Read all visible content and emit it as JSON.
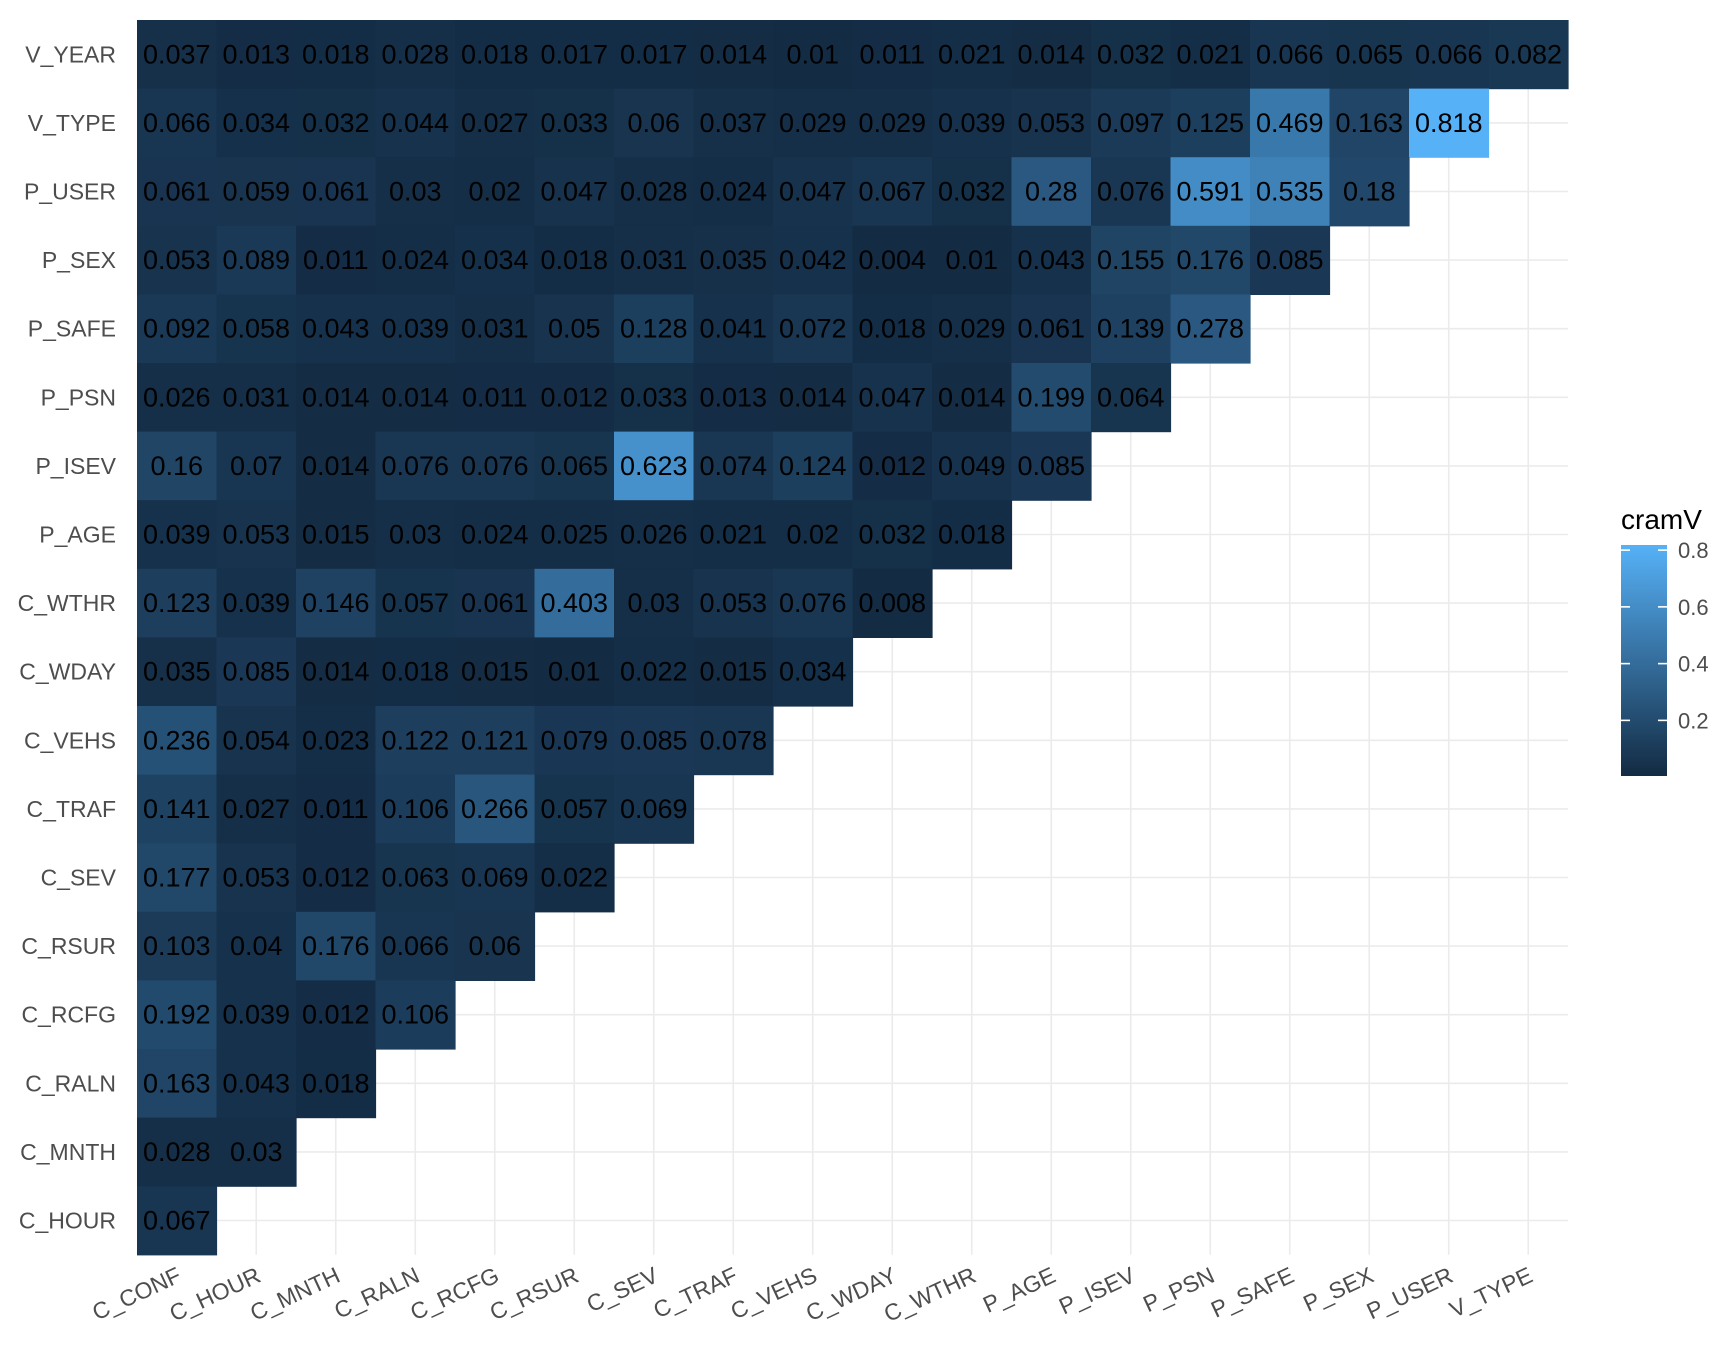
{
  "chart_data": {
    "type": "heatmap",
    "x_categories": [
      "C_CONF",
      "C_HOUR",
      "C_MNTH",
      "C_RALN",
      "C_RCFG",
      "C_RSUR",
      "C_SEV",
      "C_TRAF",
      "C_VEHS",
      "C_WDAY",
      "C_WTHR",
      "P_AGE",
      "P_ISEV",
      "P_PSN",
      "P_SAFE",
      "P_SEX",
      "P_USER",
      "V_TYPE"
    ],
    "y_categories": [
      "V_YEAR",
      "V_TYPE",
      "P_USER",
      "P_SEX",
      "P_SAFE",
      "P_PSN",
      "P_ISEV",
      "P_AGE",
      "C_WTHR",
      "C_WDAY",
      "C_VEHS",
      "C_TRAF",
      "C_SEV",
      "C_RSUR",
      "C_RCFG",
      "C_RALN",
      "C_MNTH",
      "C_HOUR"
    ],
    "rows": [
      {
        "y": "V_YEAR",
        "values": [
          "0.037",
          "0.013",
          "0.018",
          "0.028",
          "0.018",
          "0.017",
          "0.017",
          "0.014",
          "0.01",
          "0.011",
          "0.021",
          "0.014",
          "0.032",
          "0.021",
          "0.066",
          "0.065",
          "0.066",
          "0.082"
        ]
      },
      {
        "y": "V_TYPE",
        "values": [
          "0.066",
          "0.034",
          "0.032",
          "0.044",
          "0.027",
          "0.033",
          "0.06",
          "0.037",
          "0.029",
          "0.029",
          "0.039",
          "0.053",
          "0.097",
          "0.125",
          "0.469",
          "0.163",
          "0.818"
        ]
      },
      {
        "y": "P_USER",
        "values": [
          "0.061",
          "0.059",
          "0.061",
          "0.03",
          "0.02",
          "0.047",
          "0.028",
          "0.024",
          "0.047",
          "0.067",
          "0.032",
          "0.28",
          "0.076",
          "0.591",
          "0.535",
          "0.18"
        ]
      },
      {
        "y": "P_SEX",
        "values": [
          "0.053",
          "0.089",
          "0.011",
          "0.024",
          "0.034",
          "0.018",
          "0.031",
          "0.035",
          "0.042",
          "0.004",
          "0.01",
          "0.043",
          "0.155",
          "0.176",
          "0.085"
        ]
      },
      {
        "y": "P_SAFE",
        "values": [
          "0.092",
          "0.058",
          "0.043",
          "0.039",
          "0.031",
          "0.05",
          "0.128",
          "0.041",
          "0.072",
          "0.018",
          "0.029",
          "0.061",
          "0.139",
          "0.278"
        ]
      },
      {
        "y": "P_PSN",
        "values": [
          "0.026",
          "0.031",
          "0.014",
          "0.014",
          "0.011",
          "0.012",
          "0.033",
          "0.013",
          "0.014",
          "0.047",
          "0.014",
          "0.199",
          "0.064"
        ]
      },
      {
        "y": "P_ISEV",
        "values": [
          "0.16",
          "0.07",
          "0.014",
          "0.076",
          "0.076",
          "0.065",
          "0.623",
          "0.074",
          "0.124",
          "0.012",
          "0.049",
          "0.085"
        ]
      },
      {
        "y": "P_AGE",
        "values": [
          "0.039",
          "0.053",
          "0.015",
          "0.03",
          "0.024",
          "0.025",
          "0.026",
          "0.021",
          "0.02",
          "0.032",
          "0.018"
        ]
      },
      {
        "y": "C_WTHR",
        "values": [
          "0.123",
          "0.039",
          "0.146",
          "0.057",
          "0.061",
          "0.403",
          "0.03",
          "0.053",
          "0.076",
          "0.008"
        ]
      },
      {
        "y": "C_WDAY",
        "values": [
          "0.035",
          "0.085",
          "0.014",
          "0.018",
          "0.015",
          "0.01",
          "0.022",
          "0.015",
          "0.034"
        ]
      },
      {
        "y": "C_VEHS",
        "values": [
          "0.236",
          "0.054",
          "0.023",
          "0.122",
          "0.121",
          "0.079",
          "0.085",
          "0.078"
        ]
      },
      {
        "y": "C_TRAF",
        "values": [
          "0.141",
          "0.027",
          "0.011",
          "0.106",
          "0.266",
          "0.057",
          "0.069"
        ]
      },
      {
        "y": "C_SEV",
        "values": [
          "0.177",
          "0.053",
          "0.012",
          "0.063",
          "0.069",
          "0.022"
        ]
      },
      {
        "y": "C_RSUR",
        "values": [
          "0.103",
          "0.04",
          "0.176",
          "0.066",
          "0.06"
        ]
      },
      {
        "y": "C_RCFG",
        "values": [
          "0.192",
          "0.039",
          "0.012",
          "0.106"
        ]
      },
      {
        "y": "C_RALN",
        "values": [
          "0.163",
          "0.043",
          "0.018"
        ]
      },
      {
        "y": "C_MNTH",
        "values": [
          "0.028",
          "0.03"
        ]
      },
      {
        "y": "C_HOUR",
        "values": [
          "0.067"
        ]
      }
    ],
    "legend": {
      "title": "cramV",
      "ticks": [
        "0.2",
        "0.4",
        "0.6",
        "0.8"
      ],
      "placement": "right",
      "range": [
        0.004,
        0.818
      ]
    },
    "color_low": "#132B43",
    "color_high": "#56B1F7",
    "grid": true,
    "title": "",
    "xlabel": "",
    "ylabel": ""
  }
}
